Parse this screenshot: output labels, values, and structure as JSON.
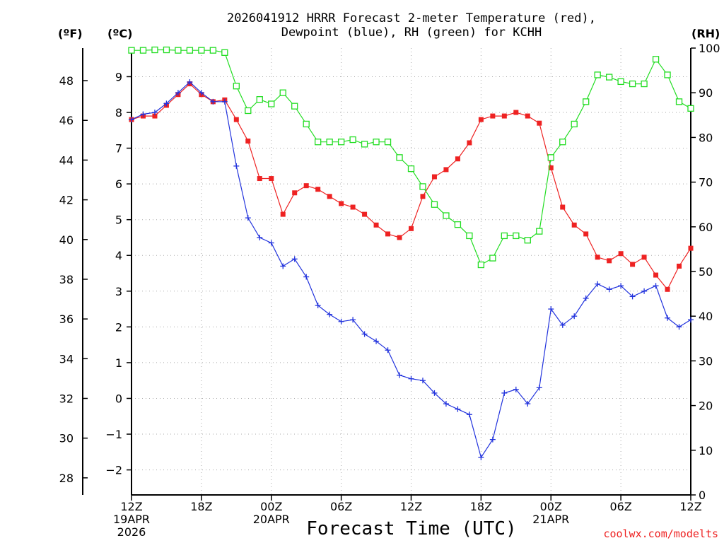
{
  "chart_data": {
    "type": "line",
    "title": [
      "2026041912 HRRR Forecast 2-meter Temperature (red),",
      "Dewpoint (blue), RH (green) for KCHH"
    ],
    "xlabel": "Forecast Time (UTC)",
    "units": {
      "fahrenheit": "(ºF)",
      "celsius": "(ºC)",
      "rh": "(RH)"
    },
    "credit": "coolwx.com/modelts",
    "x_range_hours": [
      0,
      48
    ],
    "y_celsius_range": [
      -2.7,
      9.8
    ],
    "y_rh_range": [
      0,
      100
    ],
    "x_ticks": [
      {
        "hour": 0,
        "label": "12Z",
        "sub": [
          "19APR",
          "2026"
        ]
      },
      {
        "hour": 6,
        "label": "18Z",
        "sub": []
      },
      {
        "hour": 12,
        "label": "00Z",
        "sub": [
          "20APR"
        ]
      },
      {
        "hour": 18,
        "label": "06Z",
        "sub": []
      },
      {
        "hour": 24,
        "label": "12Z",
        "sub": []
      },
      {
        "hour": 30,
        "label": "18Z",
        "sub": []
      },
      {
        "hour": 36,
        "label": "00Z",
        "sub": [
          "21APR"
        ]
      },
      {
        "hour": 42,
        "label": "06Z",
        "sub": []
      },
      {
        "hour": 48,
        "label": "12Z",
        "sub": []
      }
    ],
    "y_celsius_ticks": [
      -2,
      -1,
      0,
      1,
      2,
      3,
      4,
      5,
      6,
      7,
      8,
      9
    ],
    "y_fahrenheit_ticks": [
      28,
      30,
      32,
      34,
      36,
      38,
      40,
      42,
      44,
      46,
      48
    ],
    "y_rh_ticks": [
      0,
      10,
      20,
      30,
      40,
      50,
      60,
      70,
      80,
      90,
      100
    ],
    "series": [
      {
        "name": "Temperature",
        "unit": "C",
        "color": "#ee2222",
        "marker": "filled-square",
        "values": [
          7.8,
          7.9,
          7.9,
          8.2,
          8.5,
          8.8,
          8.5,
          8.3,
          8.35,
          7.8,
          7.2,
          6.15,
          6.15,
          5.15,
          5.75,
          5.95,
          5.85,
          5.65,
          5.45,
          5.35,
          5.15,
          4.85,
          4.6,
          4.5,
          4.75,
          5.65,
          6.2,
          6.4,
          6.7,
          7.15,
          7.8,
          7.9,
          7.9,
          8.0,
          7.9,
          7.7,
          6.45,
          5.35,
          4.85,
          4.6,
          3.95,
          3.85,
          4.05,
          3.75,
          3.95,
          3.45,
          3.05,
          3.7,
          4.2
        ]
      },
      {
        "name": "Dewpoint",
        "unit": "C",
        "color": "#2233dd",
        "marker": "plus",
        "values": [
          7.8,
          7.95,
          8.0,
          8.25,
          8.55,
          8.85,
          8.55,
          8.3,
          8.3,
          6.5,
          5.05,
          4.5,
          4.35,
          3.7,
          3.9,
          3.4,
          2.6,
          2.35,
          2.15,
          2.2,
          1.8,
          1.6,
          1.35,
          0.65,
          0.55,
          0.5,
          0.15,
          -0.15,
          -0.3,
          -0.45,
          -1.65,
          -1.15,
          0.15,
          0.25,
          -0.15,
          0.3,
          2.5,
          2.05,
          2.3,
          2.8,
          3.2,
          3.05,
          3.15,
          2.85,
          3.0,
          3.15,
          2.25,
          2.0,
          2.2
        ]
      },
      {
        "name": "RH",
        "unit": "%",
        "color": "#22dd22",
        "marker": "open-square",
        "values": [
          99.5,
          99.5,
          99.6,
          99.6,
          99.5,
          99.5,
          99.5,
          99.5,
          99,
          91.5,
          86,
          88.5,
          87.5,
          90,
          87,
          83,
          79,
          79,
          79,
          79.5,
          78.5,
          79,
          79,
          75.5,
          73,
          69,
          65,
          62.5,
          60.5,
          58,
          51.5,
          53,
          58,
          58,
          57,
          59,
          75.5,
          79,
          83,
          88,
          94,
          93.5,
          92.5,
          92,
          92,
          97.5,
          94,
          88,
          86.5
        ]
      }
    ]
  }
}
